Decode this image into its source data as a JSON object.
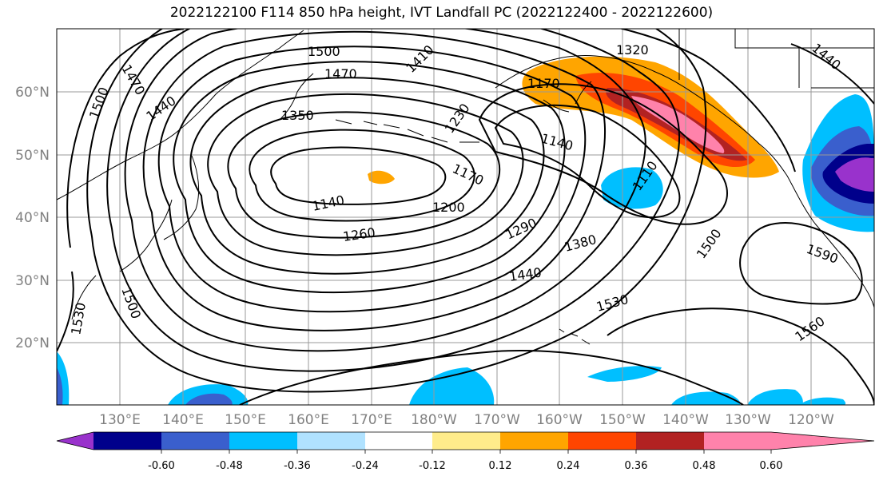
{
  "title": "2022122100 F114 850 hPa height, IVT Landfall PC (2022122400 - 2022122600)",
  "map": {
    "lat_labels": [
      "60°N",
      "50°N",
      "40°N",
      "30°N",
      "20°N"
    ],
    "lon_labels": [
      "130°E",
      "140°E",
      "150°E",
      "160°E",
      "170°E",
      "180°W",
      "170°W",
      "160°W",
      "150°W",
      "140°W",
      "130°W",
      "120°W"
    ],
    "contour_labels": [
      "1500",
      "1470",
      "1410",
      "1320",
      "1440",
      "1470",
      "1500",
      "1440",
      "1350",
      "1230",
      "1170",
      "1140",
      "1170",
      "1110",
      "1140",
      "1200",
      "1260",
      "1290",
      "1380",
      "1500",
      "1590",
      "1440",
      "1500",
      "1530",
      "1530",
      "1560"
    ]
  },
  "colorbar": {
    "colors": [
      "#9932CC",
      "#00008B",
      "#3A5FCD",
      "#00BFFF",
      "#B0E2FF",
      "#FFFFFF",
      "#FFEC8B",
      "#FFA500",
      "#FF4500",
      "#B22222",
      "#FF82AB"
    ],
    "tick_labels": [
      "-0.60",
      "-0.48",
      "-0.36",
      "-0.24",
      "-0.12",
      "0.12",
      "0.24",
      "0.36",
      "0.48",
      "0.60"
    ]
  }
}
